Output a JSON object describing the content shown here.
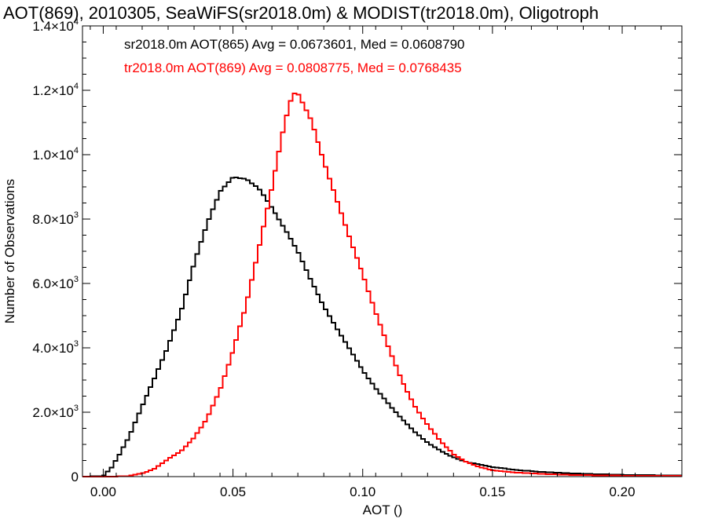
{
  "chart_data": {
    "type": "line",
    "title": "AOT(869), 2010305, SeaWiFS(sr2018.0m) & MODIST(tr2018.0m), Oligotroph",
    "xlabel": "AOT ()",
    "ylabel": "Number of Observations",
    "xlim": [
      -0.008,
      0.223
    ],
    "ylim": [
      0,
      14000
    ],
    "x_ticks": [
      {
        "value": 0.0,
        "label": "0.00"
      },
      {
        "value": 0.05,
        "label": "0.05"
      },
      {
        "value": 0.1,
        "label": "0.10"
      },
      {
        "value": 0.15,
        "label": "0.15"
      },
      {
        "value": 0.2,
        "label": "0.20"
      }
    ],
    "y_ticks": [
      {
        "value": 0,
        "mant": "0",
        "exp": ""
      },
      {
        "value": 2000,
        "mant": "2.0×10",
        "exp": "3"
      },
      {
        "value": 4000,
        "mant": "4.0×10",
        "exp": "3"
      },
      {
        "value": 6000,
        "mant": "6.0×10",
        "exp": "3"
      },
      {
        "value": 8000,
        "mant": "8.0×10",
        "exp": "3"
      },
      {
        "value": 10000,
        "mant": "1.0×10",
        "exp": "4"
      },
      {
        "value": 12000,
        "mant": "1.2×10",
        "exp": "4"
      },
      {
        "value": 14000,
        "mant": "1.4×10",
        "exp": "4"
      }
    ],
    "grid": false,
    "series": [
      {
        "label": "sr2018.0m AOT(865) Avg = 0.0673601, Med = 0.0608790",
        "color": "#000000",
        "points": [
          [
            -0.008,
            0
          ],
          [
            0.0,
            20
          ],
          [
            0.003,
            250
          ],
          [
            0.006,
            650
          ],
          [
            0.01,
            1250
          ],
          [
            0.015,
            2200
          ],
          [
            0.02,
            3100
          ],
          [
            0.025,
            4050
          ],
          [
            0.03,
            5150
          ],
          [
            0.035,
            6600
          ],
          [
            0.04,
            7850
          ],
          [
            0.045,
            8850
          ],
          [
            0.05,
            9300
          ],
          [
            0.055,
            9250
          ],
          [
            0.06,
            8950
          ],
          [
            0.065,
            8350
          ],
          [
            0.07,
            7700
          ],
          [
            0.075,
            7000
          ],
          [
            0.08,
            6100
          ],
          [
            0.085,
            5300
          ],
          [
            0.09,
            4600
          ],
          [
            0.095,
            3950
          ],
          [
            0.1,
            3300
          ],
          [
            0.105,
            2750
          ],
          [
            0.11,
            2250
          ],
          [
            0.115,
            1800
          ],
          [
            0.12,
            1400
          ],
          [
            0.125,
            1050
          ],
          [
            0.13,
            800
          ],
          [
            0.135,
            600
          ],
          [
            0.14,
            450
          ],
          [
            0.15,
            300
          ],
          [
            0.16,
            200
          ],
          [
            0.17,
            140
          ],
          [
            0.18,
            100
          ],
          [
            0.19,
            75
          ],
          [
            0.2,
            55
          ],
          [
            0.21,
            45
          ],
          [
            0.223,
            30
          ]
        ]
      },
      {
        "label": "tr2018.0m AOT(869) Avg = 0.0808775, Med = 0.0768435",
        "color": "#ff0000",
        "points": [
          [
            -0.008,
            0
          ],
          [
            0.005,
            5
          ],
          [
            0.01,
            20
          ],
          [
            0.015,
            100
          ],
          [
            0.02,
            250
          ],
          [
            0.025,
            550
          ],
          [
            0.03,
            800
          ],
          [
            0.035,
            1200
          ],
          [
            0.04,
            1800
          ],
          [
            0.045,
            2700
          ],
          [
            0.05,
            3900
          ],
          [
            0.055,
            5300
          ],
          [
            0.06,
            7100
          ],
          [
            0.065,
            9000
          ],
          [
            0.07,
            11000
          ],
          [
            0.073,
            11900
          ],
          [
            0.075,
            11900
          ],
          [
            0.08,
            11100
          ],
          [
            0.085,
            9800
          ],
          [
            0.09,
            8600
          ],
          [
            0.095,
            7400
          ],
          [
            0.1,
            6300
          ],
          [
            0.105,
            5100
          ],
          [
            0.11,
            4000
          ],
          [
            0.115,
            3000
          ],
          [
            0.12,
            2200
          ],
          [
            0.125,
            1600
          ],
          [
            0.13,
            1100
          ],
          [
            0.135,
            700
          ],
          [
            0.14,
            450
          ],
          [
            0.145,
            300
          ],
          [
            0.15,
            200
          ],
          [
            0.16,
            120
          ],
          [
            0.17,
            80
          ],
          [
            0.18,
            55
          ],
          [
            0.19,
            40
          ],
          [
            0.2,
            30
          ],
          [
            0.21,
            25
          ],
          [
            0.223,
            20
          ]
        ]
      }
    ]
  }
}
